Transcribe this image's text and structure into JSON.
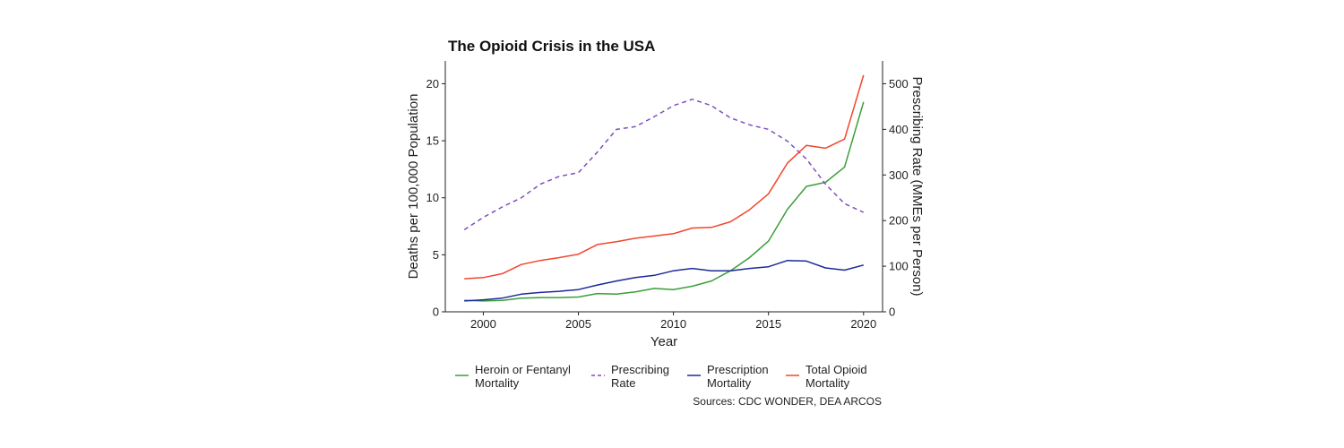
{
  "chart_data": {
    "type": "line",
    "title": "The Opioid Crisis in the USA",
    "xlabel": "Year",
    "ylabel": "Deaths per 100,000 Population",
    "y2label": "Prescribing Rate (MMEs per Person)",
    "xlim": [
      1998,
      2021
    ],
    "ylim": [
      0,
      22
    ],
    "y2lim": [
      0,
      550
    ],
    "x_ticks": [
      2000,
      2005,
      2010,
      2015,
      2020
    ],
    "y_ticks": [
      0,
      5,
      10,
      15,
      20
    ],
    "y2_ticks": [
      0,
      100,
      200,
      300,
      400,
      500
    ],
    "grid": false,
    "legend_position": "bottom",
    "source": "Sources: CDC WONDER, DEA ARCOS",
    "x": [
      1999,
      2000,
      2001,
      2002,
      2003,
      2004,
      2005,
      2006,
      2007,
      2008,
      2009,
      2010,
      2011,
      2012,
      2013,
      2014,
      2015,
      2016,
      2017,
      2018,
      2019,
      2020
    ],
    "series": [
      {
        "name": "Heroin or Fentanyl Mortality",
        "legend_lines": [
          "Heroin or Fentanyl",
          "Mortality"
        ],
        "axis": "left",
        "color": "#3a9e3a",
        "dash": "solid",
        "values": [
          1.0,
          0.95,
          1.0,
          1.2,
          1.25,
          1.25,
          1.3,
          1.6,
          1.55,
          1.75,
          2.05,
          1.95,
          2.25,
          2.7,
          3.6,
          4.75,
          6.2,
          9.0,
          11.0,
          11.35,
          12.7,
          18.4
        ]
      },
      {
        "name": "Prescribing Rate",
        "legend_lines": [
          "Prescribing",
          "Rate"
        ],
        "axis": "right",
        "color": "#7d4fbd",
        "dash": "dashed",
        "values": [
          180,
          207,
          230,
          250,
          280,
          297,
          305,
          350,
          400,
          406,
          428,
          452,
          466,
          452,
          425,
          410,
          400,
          374,
          335,
          280,
          237,
          218
        ]
      },
      {
        "name": "Prescription Mortality",
        "legend_lines": [
          "Prescription",
          "Mortality"
        ],
        "axis": "left",
        "color": "#1c2a99",
        "dash": "solid",
        "values": [
          0.95,
          1.05,
          1.2,
          1.55,
          1.7,
          1.8,
          1.95,
          2.35,
          2.7,
          3.0,
          3.2,
          3.6,
          3.8,
          3.6,
          3.6,
          3.8,
          3.95,
          4.5,
          4.45,
          3.85,
          3.65,
          4.1
        ]
      },
      {
        "name": "Total Opioid Mortality",
        "legend_lines": [
          "Total Opioid",
          "Mortality"
        ],
        "axis": "left",
        "color": "#f2452e",
        "dash": "solid",
        "values": [
          2.9,
          3.0,
          3.35,
          4.15,
          4.5,
          4.75,
          5.05,
          5.9,
          6.15,
          6.45,
          6.65,
          6.85,
          7.35,
          7.4,
          7.9,
          8.95,
          10.35,
          13.05,
          14.6,
          14.35,
          15.15,
          20.75
        ]
      }
    ]
  }
}
